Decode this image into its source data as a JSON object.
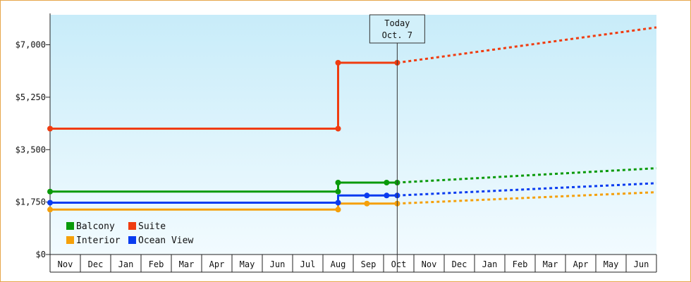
{
  "chart_data": {
    "type": "line",
    "x": [
      "Nov",
      "Dec",
      "Jan",
      "Feb",
      "Mar",
      "Apr",
      "May",
      "Jun",
      "Jul",
      "Aug",
      "Sep",
      "Oct",
      "Nov",
      "Dec",
      "Jan",
      "Feb",
      "Mar",
      "Apr",
      "May",
      "Jun"
    ],
    "y_ticks": [
      "$0",
      "$1,750",
      "$3,500",
      "$5,250",
      "$7,000"
    ],
    "ylim": [
      0,
      8000
    ],
    "today_marker": {
      "line1": "Today",
      "line2": "Oct. 7"
    },
    "grid": false,
    "legend_position": "bottom-left",
    "series": [
      {
        "name": "Balcony",
        "color": "#0a9a0a",
        "history": [
          {
            "x": 0,
            "y": 2100
          },
          {
            "x": 9.5,
            "y": 2100
          },
          {
            "x": 9.5,
            "y": 2400
          },
          {
            "x": 11.1,
            "y": 2400
          },
          {
            "x": 11.45,
            "y": 2400
          }
        ],
        "markers": [
          {
            "x": 0,
            "y": 2100
          },
          {
            "x": 9.5,
            "y": 2100
          },
          {
            "x": 9.5,
            "y": 2400
          },
          {
            "x": 11.1,
            "y": 2400
          },
          {
            "x": 11.45,
            "y": 2400
          }
        ],
        "forecast": [
          {
            "x": 11.45,
            "y": 2400
          },
          {
            "x": 20,
            "y": 2880
          }
        ]
      },
      {
        "name": "Suite",
        "color": "#f03c10",
        "history": [
          {
            "x": 0,
            "y": 4200
          },
          {
            "x": 9.5,
            "y": 4200
          },
          {
            "x": 9.5,
            "y": 6400
          },
          {
            "x": 11.45,
            "y": 6400
          }
        ],
        "markers": [
          {
            "x": 0,
            "y": 4200
          },
          {
            "x": 9.5,
            "y": 4200
          },
          {
            "x": 9.5,
            "y": 6400
          },
          {
            "x": 11.45,
            "y": 6400
          }
        ],
        "forecast": [
          {
            "x": 11.45,
            "y": 6400
          },
          {
            "x": 20,
            "y": 7580
          }
        ]
      },
      {
        "name": "Interior",
        "color": "#f5a00a",
        "history": [
          {
            "x": 0,
            "y": 1500
          },
          {
            "x": 9.5,
            "y": 1500
          },
          {
            "x": 9.5,
            "y": 1700
          },
          {
            "x": 11.45,
            "y": 1700
          }
        ],
        "markers": [
          {
            "x": 0,
            "y": 1500
          },
          {
            "x": 9.5,
            "y": 1500
          },
          {
            "x": 10.45,
            "y": 1700
          },
          {
            "x": 11.45,
            "y": 1700
          }
        ],
        "forecast": [
          {
            "x": 11.45,
            "y": 1700
          },
          {
            "x": 20,
            "y": 2080
          }
        ]
      },
      {
        "name": "Ocean View",
        "color": "#0a3cf0",
        "history": [
          {
            "x": 0,
            "y": 1730
          },
          {
            "x": 9.5,
            "y": 1730
          },
          {
            "x": 9.5,
            "y": 1970
          },
          {
            "x": 11.45,
            "y": 1970
          }
        ],
        "markers": [
          {
            "x": 0,
            "y": 1730
          },
          {
            "x": 9.5,
            "y": 1730
          },
          {
            "x": 10.45,
            "y": 1970
          },
          {
            "x": 11.1,
            "y": 1970
          },
          {
            "x": 11.45,
            "y": 1970
          }
        ],
        "forecast": [
          {
            "x": 11.45,
            "y": 1970
          },
          {
            "x": 20,
            "y": 2380
          }
        ]
      }
    ]
  }
}
